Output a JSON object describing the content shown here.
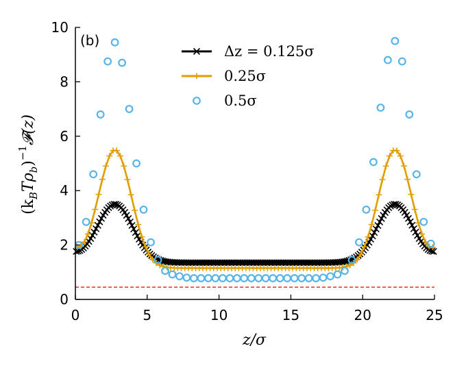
{
  "chart_data": {
    "type": "line",
    "panel_label": "(b)",
    "xlabel": "z/σ",
    "ylabel": "(k_B T ρ_b)^{-1} 𝓕(z)",
    "ylabel_parts": {
      "open": "(k",
      "sub1": "B",
      "mid": "Tρ",
      "sub2": "b",
      "close": ")",
      "sup": "−1",
      "func": "𝓕(z)"
    },
    "xlim": [
      0,
      25
    ],
    "ylim": [
      0,
      10
    ],
    "xticks": [
      0,
      5,
      10,
      15,
      20,
      25
    ],
    "yticks": [
      0,
      2,
      4,
      6,
      8,
      10
    ],
    "reference_line": {
      "y": 0.45,
      "color": "#e8302a",
      "style": "dashed"
    },
    "legend": {
      "placement": "top-center",
      "entries": [
        "Δz = 0.125σ",
        "0.25σ",
        "0.5σ"
      ]
    },
    "series": [
      {
        "name": "Δz = 0.125σ",
        "color": "#000000",
        "marker": "x",
        "dz": 0.125,
        "peak_height": 3.5,
        "plateau": 1.35,
        "edge": 1.6,
        "peaks_at": [
          2.75,
          22.25
        ],
        "width": 1.25
      },
      {
        "name": "0.25σ",
        "color": "#e09e00",
        "marker": "+",
        "dz": 0.25,
        "peak_height": 5.5,
        "plateau": 1.15,
        "edge": 1.75,
        "peaks_at": [
          2.75,
          22.25
        ],
        "width": 1.15
      },
      {
        "name": "0.5σ",
        "color": "#56b4e9",
        "marker": "o",
        "dz": 0.5,
        "points": [
          [
            0.25,
            2.0
          ],
          [
            0.75,
            2.85
          ],
          [
            1.25,
            4.6
          ],
          [
            1.75,
            6.8
          ],
          [
            2.25,
            8.75
          ],
          [
            2.75,
            9.45
          ],
          [
            3.25,
            8.7
          ],
          [
            3.75,
            7.0
          ],
          [
            4.25,
            5.0
          ],
          [
            4.75,
            3.3
          ],
          [
            5.25,
            2.1
          ],
          [
            5.75,
            1.45
          ],
          [
            6.25,
            1.05
          ],
          [
            6.75,
            0.92
          ],
          [
            7.25,
            0.85
          ],
          [
            7.75,
            0.8
          ],
          [
            8.25,
            0.78
          ],
          [
            8.75,
            0.78
          ],
          [
            9.25,
            0.78
          ],
          [
            9.75,
            0.78
          ],
          [
            10.25,
            0.78
          ],
          [
            10.75,
            0.78
          ],
          [
            11.25,
            0.78
          ],
          [
            11.75,
            0.78
          ],
          [
            12.25,
            0.78
          ],
          [
            12.75,
            0.78
          ],
          [
            13.25,
            0.78
          ],
          [
            13.75,
            0.78
          ],
          [
            14.25,
            0.78
          ],
          [
            14.75,
            0.78
          ],
          [
            15.25,
            0.78
          ],
          [
            15.75,
            0.78
          ],
          [
            16.25,
            0.78
          ],
          [
            16.75,
            0.78
          ],
          [
            17.25,
            0.8
          ],
          [
            17.75,
            0.85
          ],
          [
            18.25,
            0.92
          ],
          [
            18.75,
            1.05
          ],
          [
            19.25,
            1.45
          ],
          [
            19.75,
            2.1
          ],
          [
            20.25,
            3.3
          ],
          [
            20.75,
            5.05
          ],
          [
            21.25,
            7.05
          ],
          [
            21.75,
            8.8
          ],
          [
            22.25,
            9.5
          ],
          [
            22.75,
            8.75
          ],
          [
            23.25,
            6.8
          ],
          [
            23.75,
            4.6
          ],
          [
            24.25,
            2.85
          ],
          [
            24.75,
            2.05
          ]
        ]
      }
    ]
  }
}
